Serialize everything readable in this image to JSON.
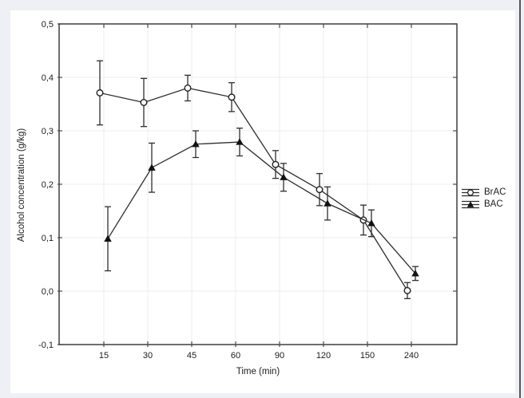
{
  "colors": {
    "page_bg": "#eef0f6",
    "panel_bg": "#ffffff",
    "plot_border": "#4a4a4a",
    "grid": "#ececec",
    "series_line": "#2e2e2e",
    "marker_fill_dark": "#111111",
    "marker_fill_open": "#ffffff",
    "text": "#1c1c1c",
    "window_edge": "#56545c"
  },
  "chart_data": {
    "type": "line",
    "title": "",
    "xlabel": "Time (min)",
    "ylabel": "Alcohol concentration (g/kg)",
    "categories": [
      "15",
      "30",
      "45",
      "60",
      "90",
      "120",
      "150",
      "240"
    ],
    "ylim": [
      -0.1,
      0.5
    ],
    "yticks": {
      "values": [
        -0.1,
        0.0,
        0.1,
        0.2,
        0.3,
        0.4,
        0.5
      ],
      "labels": [
        "-0,1",
        "0,0",
        "0,1",
        "0,2",
        "0,3",
        "0,4",
        "0,5"
      ]
    },
    "grid": true,
    "legend_position": "right-outside",
    "series": [
      {
        "name": "BrAC",
        "marker": "open-circle",
        "values": [
          0.371,
          0.353,
          0.38,
          0.363,
          0.237,
          0.19,
          0.133,
          0.001
        ],
        "errors": [
          0.06,
          0.045,
          0.024,
          0.027,
          0.026,
          0.03,
          0.028,
          0.015
        ]
      },
      {
        "name": "BAC",
        "marker": "filled-triangle",
        "values": [
          0.098,
          0.231,
          0.275,
          0.279,
          0.213,
          0.164,
          0.127,
          0.033
        ],
        "errors": [
          0.06,
          0.046,
          0.025,
          0.026,
          0.026,
          0.031,
          0.025,
          0.013
        ]
      }
    ]
  }
}
